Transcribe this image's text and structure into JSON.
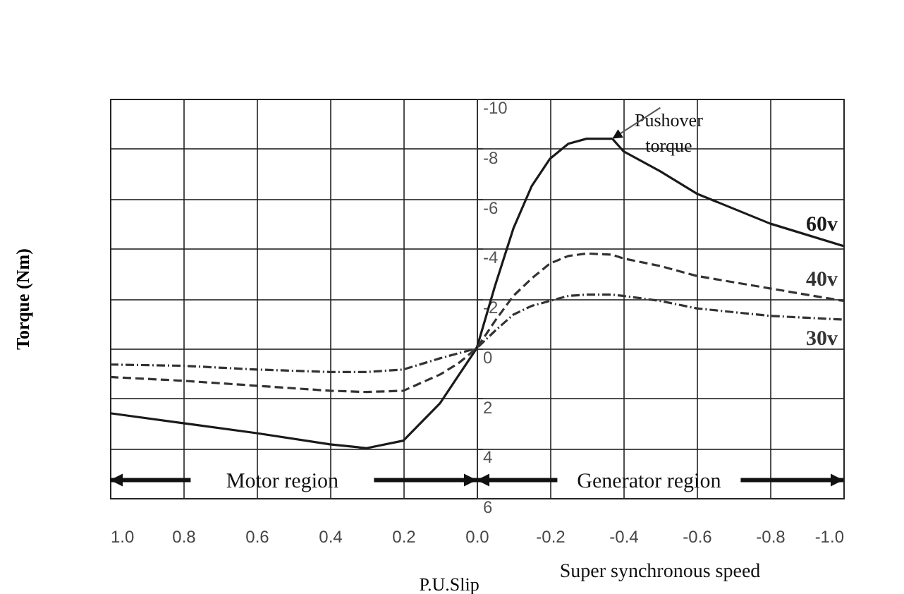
{
  "chart_data": {
    "type": "line",
    "xlabel": "P.U.Slip",
    "ylabel": "Torque (Nm)",
    "x": [
      1,
      0.8,
      0.6,
      0.4,
      0.3,
      0.2,
      0.1,
      0.05,
      0,
      -0.05,
      -0.1,
      -0.15,
      -0.2,
      -0.25,
      -0.3,
      -0.37,
      -0.4,
      -0.5,
      -0.6,
      -0.8,
      -1
    ],
    "series": [
      {
        "name": "60v",
        "color": "#1a1a1a",
        "line_style": "solid",
        "values": [
          2.6,
          3.0,
          3.4,
          3.85,
          4.0,
          3.7,
          2.2,
          1.1,
          0,
          -2.5,
          -4.8,
          -6.5,
          -7.6,
          -8.2,
          -8.4,
          -8.4,
          -7.9,
          -7.1,
          -6.2,
          -5.0,
          -4.1
        ]
      },
      {
        "name": "40v",
        "color": "#333333",
        "line_style": "dashed",
        "values": [
          1.15,
          1.3,
          1.5,
          1.7,
          1.75,
          1.7,
          1.05,
          0.6,
          0,
          -1.1,
          -2.1,
          -2.8,
          -3.4,
          -3.7,
          -3.8,
          -3.75,
          -3.6,
          -3.3,
          -2.9,
          -2.4,
          -1.9
        ]
      },
      {
        "name": "30v",
        "color": "#333333",
        "line_style": "dotted",
        "values": [
          0.65,
          0.7,
          0.85,
          0.95,
          0.95,
          0.85,
          0.4,
          0.2,
          0,
          -0.7,
          -1.35,
          -1.7,
          -1.9,
          -2.1,
          -2.15,
          -2.15,
          -2.1,
          -1.9,
          -1.6,
          -1.3,
          -1.15
        ]
      }
    ],
    "xlim": [
      1,
      -1
    ],
    "xticks": [
      {
        "value": 1,
        "label": "1.0"
      },
      {
        "value": 0.8,
        "label": "0.8"
      },
      {
        "value": 0.6,
        "label": "0.6"
      },
      {
        "value": 0.4,
        "label": "0.4"
      },
      {
        "value": 0.2,
        "label": "0.2"
      },
      {
        "value": 0,
        "label": "0.0"
      },
      {
        "value": -0.2,
        "label": "-0.2"
      },
      {
        "value": -0.4,
        "label": "-0.4"
      },
      {
        "value": -0.6,
        "label": "-0.6"
      },
      {
        "value": -0.8,
        "label": "-0.8"
      },
      {
        "value": -1,
        "label": "-1.0"
      }
    ],
    "ylim": [
      6,
      -10
    ],
    "yticks": [
      -10,
      -8,
      -6,
      -4,
      -2,
      0,
      2,
      4,
      6
    ],
    "grid": true,
    "legend": false,
    "annotations": [
      {
        "text": "Pushover torque",
        "x": -0.37,
        "y": -8.4
      },
      "Motor region",
      "Generator region",
      "Super synchronous speed"
    ]
  }
}
